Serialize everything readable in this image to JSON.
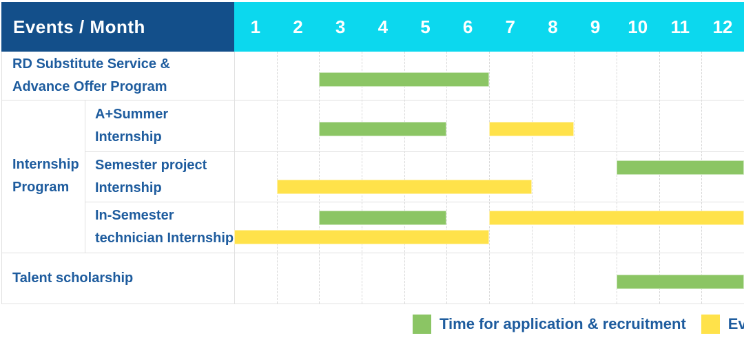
{
  "title": "Events / Month",
  "months": [
    "1",
    "2",
    "3",
    "4",
    "5",
    "6",
    "7",
    "8",
    "9",
    "10",
    "11",
    "12"
  ],
  "rows": [
    {
      "label_lines": [
        "RD Substitute Service &",
        "Advance Offer Program"
      ]
    },
    {
      "label_lines": [
        "A+Summer",
        "Internship"
      ]
    },
    {
      "label_lines": [
        "Semester project",
        "Internship"
      ]
    },
    {
      "label_lines": [
        "In-Semester",
        "technician Internship"
      ]
    },
    {
      "label_lines": [
        "Talent scholarship"
      ]
    }
  ],
  "group_label_lines": [
    "Internship",
    "Program"
  ],
  "legend": {
    "application": "Time for application & recruitment",
    "events": "Events"
  },
  "colors": {
    "header_navy": "#134f8a",
    "header_cyan": "#0cd8ee",
    "bar_green": "#8bc564",
    "bar_yellow": "#ffe24a",
    "label_blue": "#1e5c9e",
    "grid_line": "#e0e0e0"
  },
  "chart_data": {
    "type": "gantt",
    "title": "Events / Month",
    "x_unit": "month",
    "x_ticks": [
      1,
      2,
      3,
      4,
      5,
      6,
      7,
      8,
      9,
      10,
      11,
      12
    ],
    "x_range": [
      1,
      12
    ],
    "grid": true,
    "legend_position": "bottom-right",
    "legend": [
      {
        "color": "green",
        "label": "Time for application & recruitment"
      },
      {
        "color": "yellow",
        "label": "Events"
      }
    ],
    "tasks": [
      {
        "name": "RD Substitute Service & Advance Offer Program",
        "bars": [
          {
            "kind": "application_recruitment",
            "color": "green",
            "start_month": 3,
            "end_month": 6,
            "lane": "middle"
          }
        ]
      },
      {
        "name": "A+Summer Internship",
        "group": "Internship Program",
        "bars": [
          {
            "kind": "application_recruitment",
            "color": "green",
            "start_month": 3,
            "end_month": 5,
            "lane": "middle"
          },
          {
            "kind": "event",
            "color": "yellow",
            "start_month": 7,
            "end_month": 8,
            "lane": "middle"
          }
        ]
      },
      {
        "name": "Semester project Internship",
        "group": "Internship Program",
        "bars": [
          {
            "kind": "application_recruitment",
            "color": "green",
            "start_month": 10,
            "end_month": 12,
            "lane": "upper"
          },
          {
            "kind": "event",
            "color": "yellow",
            "start_month": 2,
            "end_month": 7,
            "lane": "lower"
          }
        ]
      },
      {
        "name": "In-Semester technician Internship",
        "group": "Internship Program",
        "bars": [
          {
            "kind": "application_recruitment",
            "color": "green",
            "start_month": 3,
            "end_month": 5,
            "lane": "upper"
          },
          {
            "kind": "event",
            "color": "yellow",
            "start_month": 7,
            "end_month": 12,
            "lane": "upper"
          },
          {
            "kind": "event",
            "color": "yellow",
            "start_month": 1,
            "end_month": 6,
            "lane": "lower"
          }
        ]
      },
      {
        "name": "Talent scholarship",
        "bars": [
          {
            "kind": "application_recruitment",
            "color": "green",
            "start_month": 10,
            "end_month": 12,
            "lane": "middle"
          }
        ]
      }
    ]
  }
}
